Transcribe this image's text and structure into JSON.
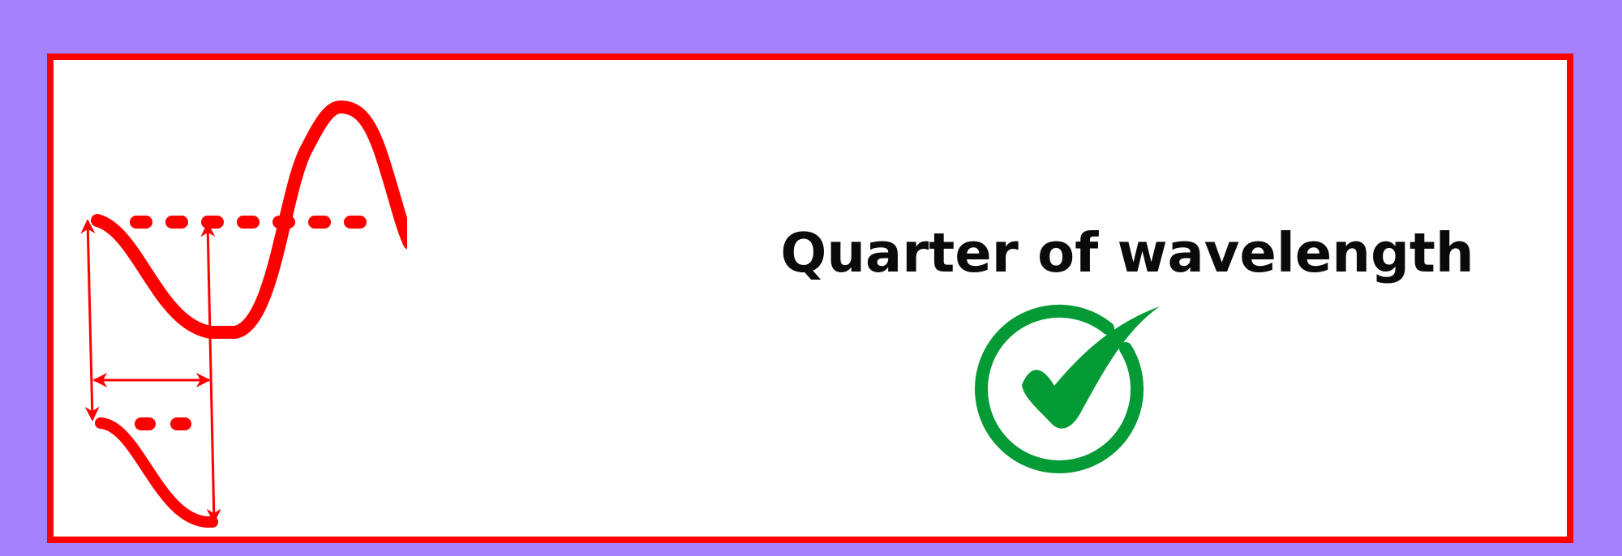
{
  "caption": {
    "text": "Quarter of wavelength"
  },
  "icon": {
    "name": "check-circle-icon",
    "color": "#049a35"
  },
  "colors": {
    "background": "#a682fe",
    "border": "#ff0000",
    "wave": "#ff0000",
    "card": "#ffffff"
  }
}
